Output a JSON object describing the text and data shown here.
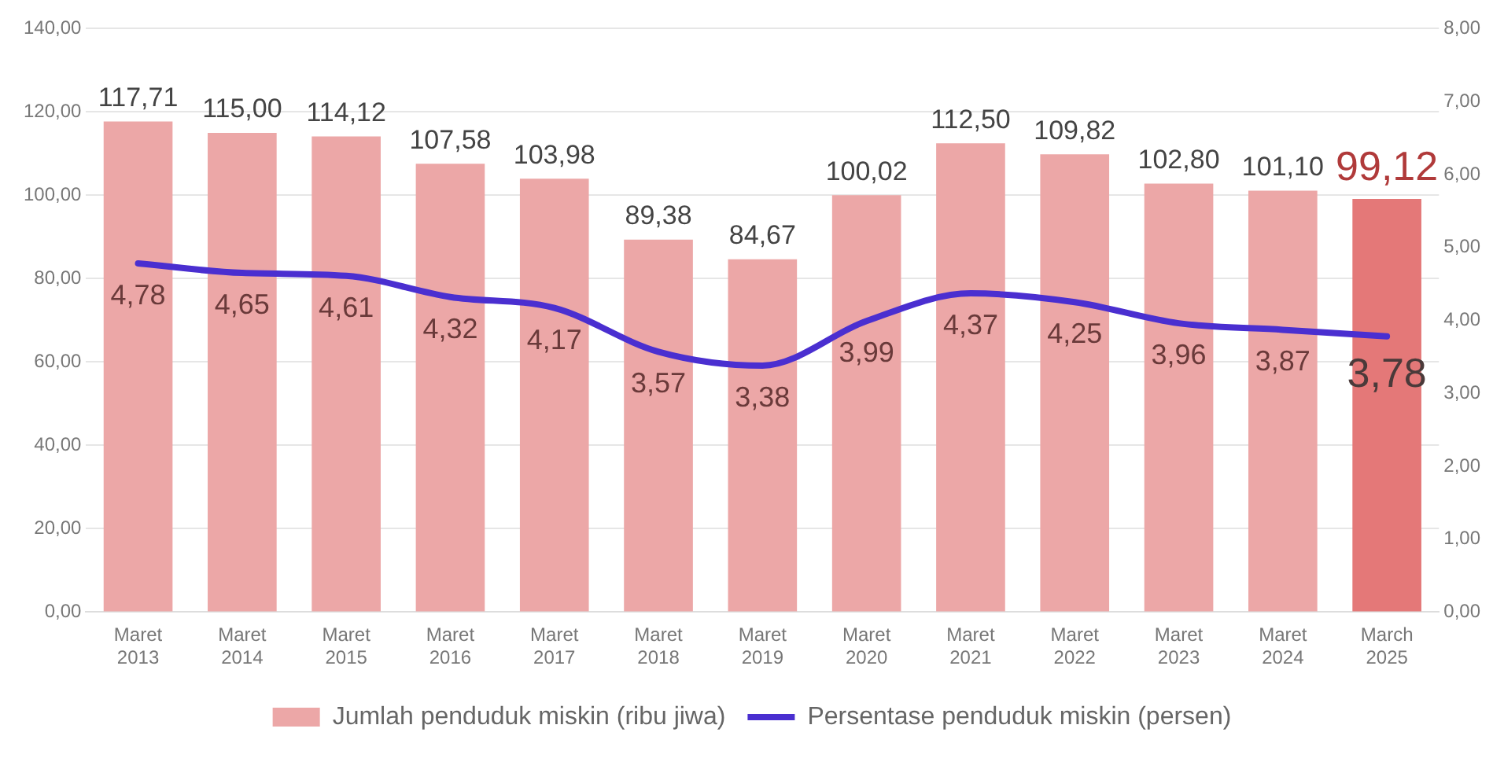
{
  "chart_data": {
    "type": "bar",
    "categories": [
      "Maret 2013",
      "Maret 2014",
      "Maret 2015",
      "Maret 2016",
      "Maret 2017",
      "Maret 2018",
      "Maret 2019",
      "Maret 2020",
      "Maret 2021",
      "Maret 2022",
      "Maret 2023",
      "Maret 2024",
      "March 2025"
    ],
    "series": [
      {
        "name": "Jumlah penduduk miskin (ribu jiwa)",
        "color": "#eca7a7",
        "colors": [
          "#eca7a7",
          "#eca7a7",
          "#eca7a7",
          "#eca7a7",
          "#eca7a7",
          "#eca7a7",
          "#eca7a7",
          "#eca7a7",
          "#eca7a7",
          "#eca7a7",
          "#eca7a7",
          "#eca7a7",
          "#e47878"
        ],
        "values": [
          117.71,
          115.0,
          114.12,
          107.58,
          103.98,
          89.38,
          84.67,
          100.02,
          112.5,
          109.82,
          102.8,
          101.1,
          99.12
        ],
        "value_labels": [
          "117,71",
          "115,00",
          "114,12",
          "107,58",
          "103,98",
          "89,38",
          "84,67",
          "100,02",
          "112,50",
          "109,82",
          "102,80",
          "101,10",
          "99,12"
        ]
      },
      {
        "type": "line",
        "axis": "y2",
        "name": "Persentase penduduk miskin (persen)",
        "color": "#4a2fd0",
        "values": [
          4.78,
          4.65,
          4.61,
          4.32,
          4.17,
          3.57,
          3.38,
          3.99,
          4.37,
          4.25,
          3.96,
          3.87,
          3.78
        ],
        "value_labels": [
          "4,78",
          "4,65",
          "4,61",
          "4,32",
          "4,17",
          "3,57",
          "3,38",
          "3,99",
          "4,37",
          "4,25",
          "3,96",
          "3,87",
          "3,78"
        ]
      }
    ],
    "ylim": [
      0,
      140
    ],
    "yticks": [
      {
        "value": 0,
        "label": "0,00"
      },
      {
        "value": 20,
        "label": "20,00"
      },
      {
        "value": 40,
        "label": "40,00"
      },
      {
        "value": 60,
        "label": "60,00"
      },
      {
        "value": 80,
        "label": "80,00"
      },
      {
        "value": 100,
        "label": "100,00"
      },
      {
        "value": 120,
        "label": "120,00"
      },
      {
        "value": 140,
        "label": "140,00"
      }
    ],
    "y2lim": [
      0,
      8
    ],
    "y2ticks": [
      {
        "value": 0,
        "label": "0,00"
      },
      {
        "value": 1,
        "label": "1,00"
      },
      {
        "value": 2,
        "label": "2,00"
      },
      {
        "value": 3,
        "label": "3,00"
      },
      {
        "value": 4,
        "label": "4,00"
      },
      {
        "value": 5,
        "label": "5,00"
      },
      {
        "value": 6,
        "label": "6,00"
      },
      {
        "value": 7,
        "label": "7,00"
      },
      {
        "value": 8,
        "label": "8,00"
      }
    ],
    "grid": "y",
    "legend": "bottom",
    "marker": "none",
    "line_style": "solid"
  }
}
